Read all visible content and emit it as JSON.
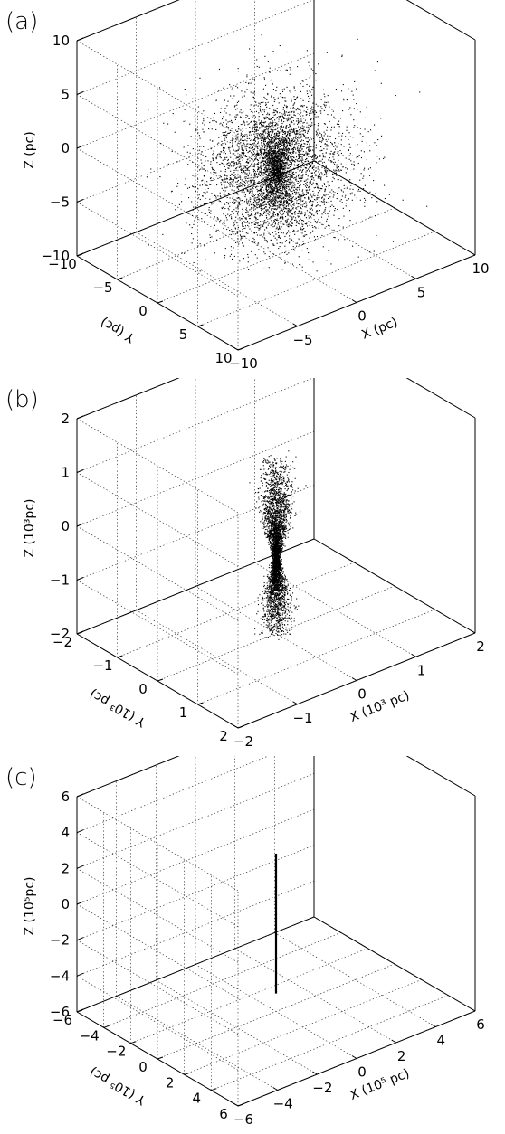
{
  "chart_data": [
    {
      "type": "scatter",
      "panel_label": "(a)",
      "xlabel": "X (pc)",
      "ylabel": "Y (pc)",
      "zlabel": "Z (pc)",
      "xlim": [
        -10,
        10
      ],
      "ylim": [
        -10,
        10
      ],
      "zlim": [
        -10,
        10
      ],
      "xticks": [
        "-10",
        "-5",
        "0",
        "5",
        "10"
      ],
      "yticks": [
        "-10",
        "-5",
        "0",
        "5",
        "10"
      ],
      "zticks": [
        "-10",
        "-5",
        "0",
        "5",
        "10"
      ],
      "grid": true,
      "distribution": {
        "shape": "spheroid with central cusp",
        "center": [
          0,
          0,
          -2
        ],
        "radius": 6,
        "n_points_approx": 6000
      }
    },
    {
      "type": "scatter",
      "panel_label": "(b)",
      "xlabel": "X (10³ pc)",
      "ylabel": "Y (10³ pc)",
      "zlabel": "Z (10³pc)",
      "xlim": [
        -2,
        2
      ],
      "ylim": [
        -2,
        2
      ],
      "zlim": [
        -2,
        2
      ],
      "xticks": [
        "-2",
        "-1",
        "0",
        "1",
        "2"
      ],
      "yticks": [
        "-2",
        "-1",
        "0",
        "1",
        "2"
      ],
      "zticks": [
        "-2",
        "-1",
        "0",
        "1",
        "2"
      ],
      "grid": true,
      "distribution": {
        "shape": "bipolar elongated lobes along Z",
        "z_range": [
          -2,
          1.3
        ],
        "waist_z": -0.6,
        "n_points_approx": 5000
      }
    },
    {
      "type": "scatter",
      "panel_label": "(c)",
      "xlabel": "X (10⁵ pc)",
      "ylabel": "Y (10⁵ pc)",
      "zlabel": "Z (10⁵pc)",
      "xlim": [
        -6,
        6
      ],
      "ylim": [
        -6,
        6
      ],
      "zlim": [
        -6,
        6
      ],
      "xticks": [
        "-6",
        "-4",
        "-2",
        "0",
        "2",
        "4",
        "6"
      ],
      "yticks": [
        "-6",
        "-4",
        "-2",
        "0",
        "2",
        "4",
        "6"
      ],
      "zticks": [
        "-6",
        "-4",
        "-2",
        "0",
        "2",
        "4",
        "6"
      ],
      "grid": true,
      "distribution": {
        "shape": "thin line along Z",
        "z_range": [
          -5,
          2.8
        ]
      }
    }
  ]
}
